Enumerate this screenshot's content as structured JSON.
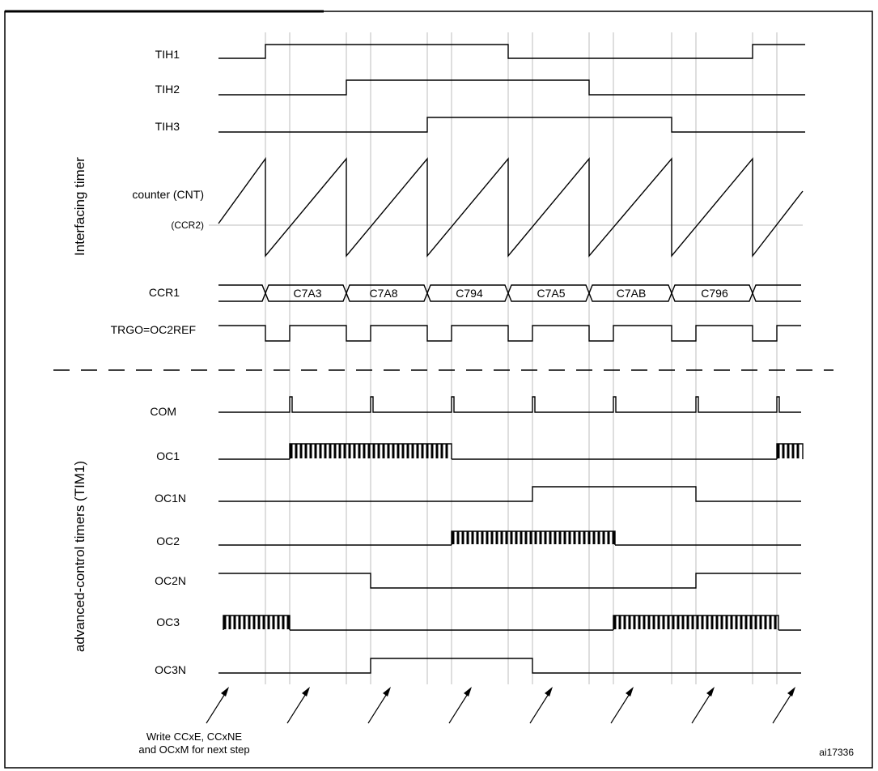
{
  "groups": {
    "interfacing": "Interfacing timer",
    "advanced": "advanced-control timers (TIM1)"
  },
  "labels": {
    "tih1": "TIH1",
    "tih2": "TIH2",
    "tih3": "TIH3",
    "cnt": "counter (CNT)",
    "ccr2": "(CCR2)",
    "ccr1": "CCR1",
    "trgo": "TRGO=OC2REF",
    "com": "COM",
    "oc1": "OC1",
    "oc1n": "OC1N",
    "oc2": "OC2",
    "oc2n": "OC2N",
    "oc3": "OC3",
    "oc3n": "OC3N"
  },
  "ccr1_values": [
    "C7A3",
    "C7A8",
    "C794",
    "C7A5",
    "C7AB",
    "C796"
  ],
  "note": {
    "line1": "Write CCxE, CCxNE",
    "line2": "and OCxM for next step"
  },
  "figure_code": "ai17336"
}
